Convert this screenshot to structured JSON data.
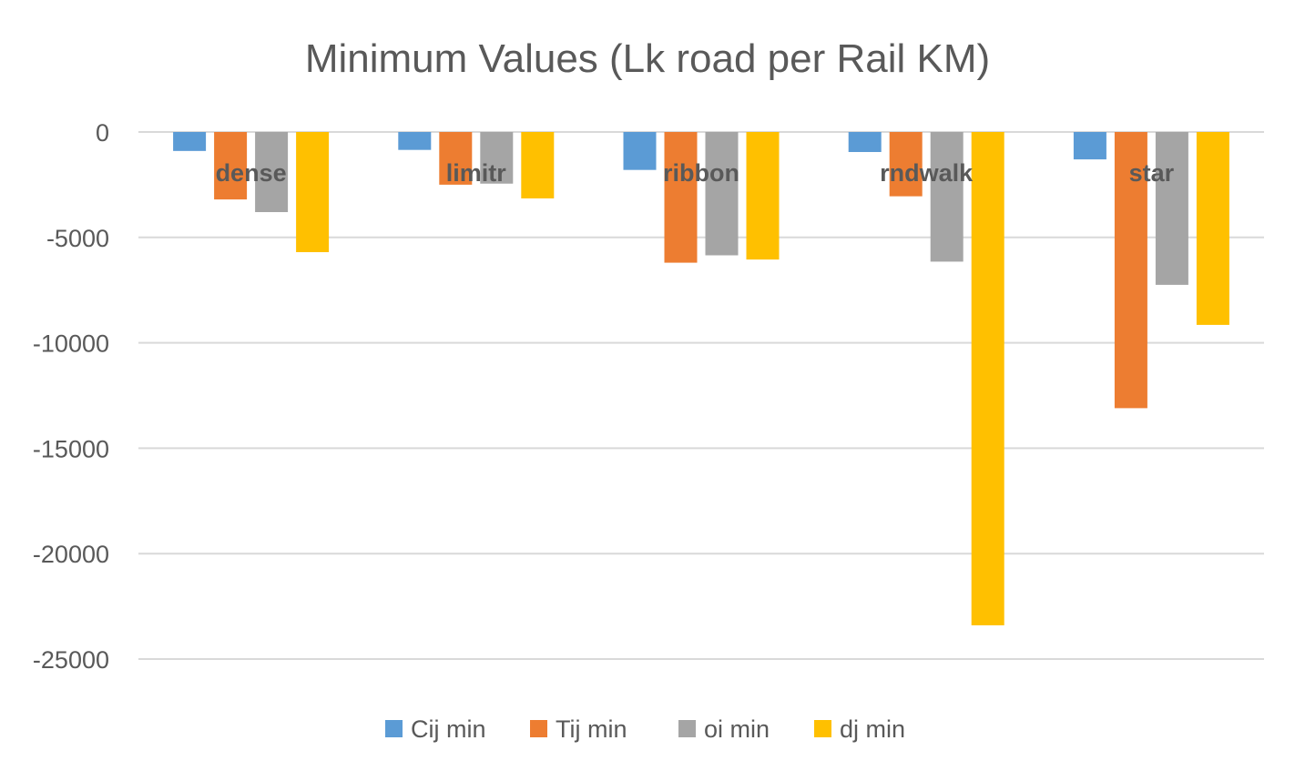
{
  "chart_data": {
    "type": "bar",
    "title": "Minimum Values (Lk road per Rail KM)",
    "categories": [
      "dense",
      "limitr",
      "ribbon",
      "rndwalk",
      "star"
    ],
    "series": [
      {
        "name": "Cij min",
        "color": "#5B9BD5",
        "values": [
          -900,
          -850,
          -1800,
          -950,
          -1300
        ]
      },
      {
        "name": "Tij min",
        "color": "#ED7D31",
        "values": [
          -3200,
          -2500,
          -6200,
          -3050,
          -13100
        ]
      },
      {
        "name": "oi min",
        "color": "#A5A5A5",
        "values": [
          -3800,
          -2450,
          -5850,
          -6150,
          -7250
        ]
      },
      {
        "name": "dj min",
        "color": "#FFC000",
        "values": [
          -5700,
          -3150,
          -6050,
          -23400,
          -9150
        ]
      }
    ],
    "yticks": [
      0,
      -5000,
      -10000,
      -15000,
      -20000,
      -25000
    ],
    "ylim": [
      -25000,
      0
    ],
    "grid": true,
    "legend": "bottom"
  }
}
